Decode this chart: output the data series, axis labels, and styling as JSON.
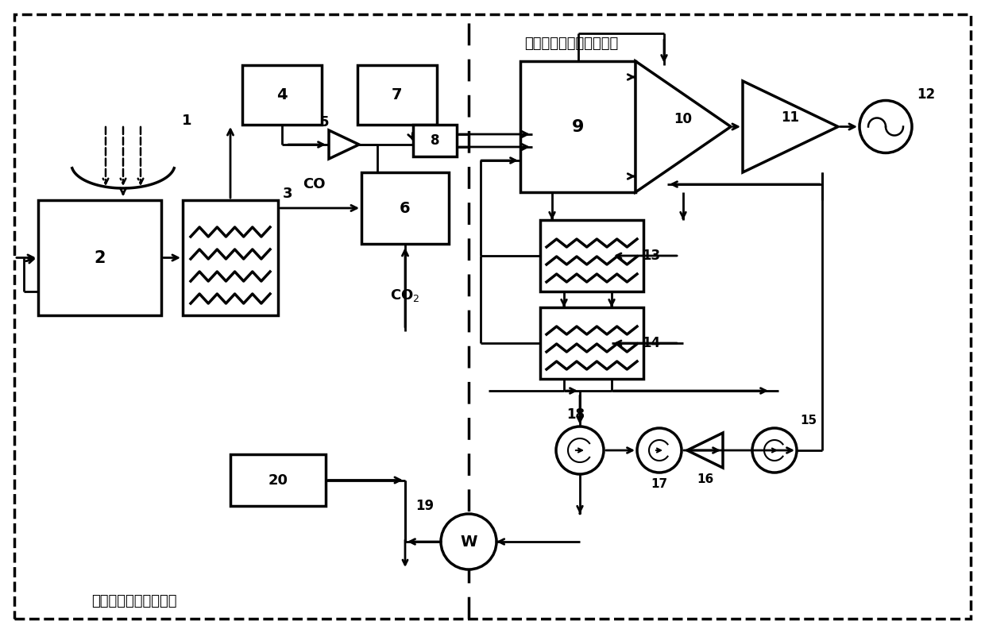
{
  "left_label": "太阳能燃料合成子系统",
  "right_label": "二氧化碳动力循环子系统",
  "bg": "#ffffff",
  "lw": 2.5
}
